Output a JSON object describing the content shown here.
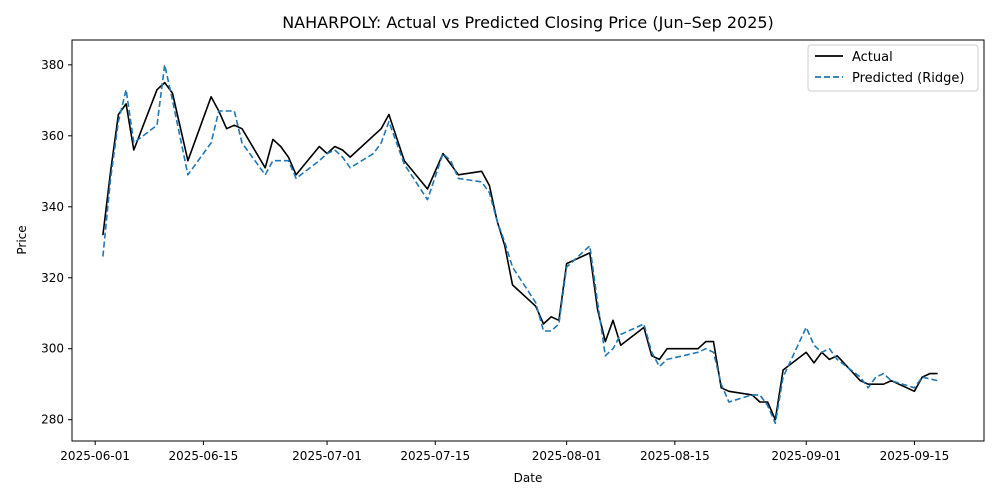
{
  "chart_data": {
    "type": "line",
    "title": "NAHARPOLY: Actual vs Predicted Closing Price (Jun–Sep 2025)",
    "xlabel": "Date",
    "ylabel": "Price",
    "xlim": [
      "2025-05-29",
      "2025-09-24"
    ],
    "ylim": [
      274,
      387
    ],
    "x_ticks": [
      "2025-06-01",
      "2025-06-15",
      "2025-07-01",
      "2025-07-15",
      "2025-08-01",
      "2025-08-15",
      "2025-09-01",
      "2025-09-15"
    ],
    "y_ticks": [
      280,
      300,
      320,
      340,
      360,
      380
    ],
    "grid": false,
    "legend_position": "top-right",
    "series": [
      {
        "name": "Actual",
        "color": "#000000",
        "style": "solid",
        "points": [
          [
            "2025-06-02",
            332
          ],
          [
            "2025-06-03",
            350
          ],
          [
            "2025-06-04",
            366
          ],
          [
            "2025-06-05",
            369
          ],
          [
            "2025-06-06",
            356
          ],
          [
            "2025-06-09",
            373
          ],
          [
            "2025-06-10",
            375
          ],
          [
            "2025-06-11",
            372
          ],
          [
            "2025-06-13",
            353
          ],
          [
            "2025-06-16",
            371
          ],
          [
            "2025-06-17",
            367
          ],
          [
            "2025-06-18",
            362
          ],
          [
            "2025-06-19",
            363
          ],
          [
            "2025-06-20",
            362
          ],
          [
            "2025-06-23",
            351
          ],
          [
            "2025-06-24",
            359
          ],
          [
            "2025-06-25",
            357
          ],
          [
            "2025-06-26",
            354
          ],
          [
            "2025-06-27",
            349
          ],
          [
            "2025-06-30",
            357
          ],
          [
            "2025-07-01",
            355
          ],
          [
            "2025-07-02",
            357
          ],
          [
            "2025-07-03",
            356
          ],
          [
            "2025-07-04",
            354
          ],
          [
            "2025-07-07",
            360
          ],
          [
            "2025-07-08",
            362
          ],
          [
            "2025-07-09",
            366
          ],
          [
            "2025-07-11",
            353
          ],
          [
            "2025-07-14",
            345
          ],
          [
            "2025-07-16",
            355
          ],
          [
            "2025-07-18",
            349
          ],
          [
            "2025-07-21",
            350
          ],
          [
            "2025-07-22",
            346
          ],
          [
            "2025-07-23",
            336
          ],
          [
            "2025-07-24",
            329
          ],
          [
            "2025-07-25",
            318
          ],
          [
            "2025-07-28",
            312
          ],
          [
            "2025-07-29",
            307
          ],
          [
            "2025-07-30",
            309
          ],
          [
            "2025-07-31",
            308
          ],
          [
            "2025-08-01",
            324
          ],
          [
            "2025-08-04",
            327
          ],
          [
            "2025-08-05",
            311
          ],
          [
            "2025-08-06",
            302
          ],
          [
            "2025-08-07",
            308
          ],
          [
            "2025-08-08",
            301
          ],
          [
            "2025-08-11",
            306
          ],
          [
            "2025-08-12",
            298
          ],
          [
            "2025-08-13",
            297
          ],
          [
            "2025-08-14",
            300
          ],
          [
            "2025-08-18",
            300
          ],
          [
            "2025-08-19",
            302
          ],
          [
            "2025-08-20",
            302
          ],
          [
            "2025-08-21",
            289
          ],
          [
            "2025-08-22",
            288
          ],
          [
            "2025-08-25",
            287
          ],
          [
            "2025-08-26",
            285
          ],
          [
            "2025-08-27",
            285
          ],
          [
            "2025-08-28",
            280
          ],
          [
            "2025-08-29",
            294
          ],
          [
            "2025-09-01",
            299
          ],
          [
            "2025-09-02",
            296
          ],
          [
            "2025-09-03",
            299
          ],
          [
            "2025-09-04",
            297
          ],
          [
            "2025-09-05",
            298
          ],
          [
            "2025-09-08",
            291
          ],
          [
            "2025-09-09",
            290
          ],
          [
            "2025-09-11",
            290
          ],
          [
            "2025-09-12",
            291
          ],
          [
            "2025-09-15",
            288
          ],
          [
            "2025-09-16",
            292
          ],
          [
            "2025-09-17",
            293
          ],
          [
            "2025-09-18",
            293
          ]
        ]
      },
      {
        "name": "Predicted (Ridge)",
        "color": "#1f77b4",
        "style": "dashed",
        "points": [
          [
            "2025-06-02",
            326
          ],
          [
            "2025-06-03",
            348
          ],
          [
            "2025-06-04",
            364
          ],
          [
            "2025-06-05",
            373
          ],
          [
            "2025-06-06",
            358
          ],
          [
            "2025-06-09",
            363
          ],
          [
            "2025-06-10",
            380
          ],
          [
            "2025-06-11",
            370
          ],
          [
            "2025-06-13",
            349
          ],
          [
            "2025-06-16",
            358
          ],
          [
            "2025-06-17",
            367
          ],
          [
            "2025-06-18",
            367
          ],
          [
            "2025-06-19",
            367
          ],
          [
            "2025-06-20",
            358
          ],
          [
            "2025-06-23",
            349
          ],
          [
            "2025-06-24",
            353
          ],
          [
            "2025-06-25",
            353
          ],
          [
            "2025-06-26",
            353
          ],
          [
            "2025-06-27",
            348
          ],
          [
            "2025-06-30",
            353
          ],
          [
            "2025-07-01",
            355
          ],
          [
            "2025-07-02",
            356
          ],
          [
            "2025-07-03",
            354
          ],
          [
            "2025-07-04",
            351
          ],
          [
            "2025-07-07",
            355
          ],
          [
            "2025-07-08",
            358
          ],
          [
            "2025-07-09",
            364
          ],
          [
            "2025-07-11",
            352
          ],
          [
            "2025-07-14",
            342
          ],
          [
            "2025-07-16",
            355
          ],
          [
            "2025-07-17",
            353
          ],
          [
            "2025-07-18",
            348
          ],
          [
            "2025-07-21",
            347
          ],
          [
            "2025-07-22",
            344
          ],
          [
            "2025-07-23",
            336
          ],
          [
            "2025-07-24",
            330
          ],
          [
            "2025-07-25",
            323
          ],
          [
            "2025-07-28",
            313
          ],
          [
            "2025-07-29",
            305
          ],
          [
            "2025-07-30",
            305
          ],
          [
            "2025-07-31",
            307
          ],
          [
            "2025-08-01",
            323
          ],
          [
            "2025-08-04",
            329
          ],
          [
            "2025-08-05",
            313
          ],
          [
            "2025-08-06",
            298
          ],
          [
            "2025-08-07",
            300
          ],
          [
            "2025-08-08",
            304
          ],
          [
            "2025-08-11",
            307
          ],
          [
            "2025-08-12",
            299
          ],
          [
            "2025-08-13",
            295
          ],
          [
            "2025-08-14",
            297
          ],
          [
            "2025-08-18",
            299
          ],
          [
            "2025-08-19",
            300
          ],
          [
            "2025-08-20",
            299
          ],
          [
            "2025-08-21",
            290
          ],
          [
            "2025-08-22",
            285
          ],
          [
            "2025-08-25",
            287
          ],
          [
            "2025-08-26",
            287
          ],
          [
            "2025-08-27",
            284
          ],
          [
            "2025-08-28",
            279
          ],
          [
            "2025-08-29",
            292
          ],
          [
            "2025-09-01",
            306
          ],
          [
            "2025-09-02",
            301
          ],
          [
            "2025-09-03",
            299
          ],
          [
            "2025-09-04",
            300
          ],
          [
            "2025-09-05",
            297
          ],
          [
            "2025-09-08",
            292
          ],
          [
            "2025-09-09",
            289
          ],
          [
            "2025-09-10",
            292
          ],
          [
            "2025-09-11",
            293
          ],
          [
            "2025-09-12",
            291
          ],
          [
            "2025-09-15",
            289
          ],
          [
            "2025-09-16",
            292
          ],
          [
            "2025-09-18",
            291
          ]
        ]
      }
    ]
  }
}
